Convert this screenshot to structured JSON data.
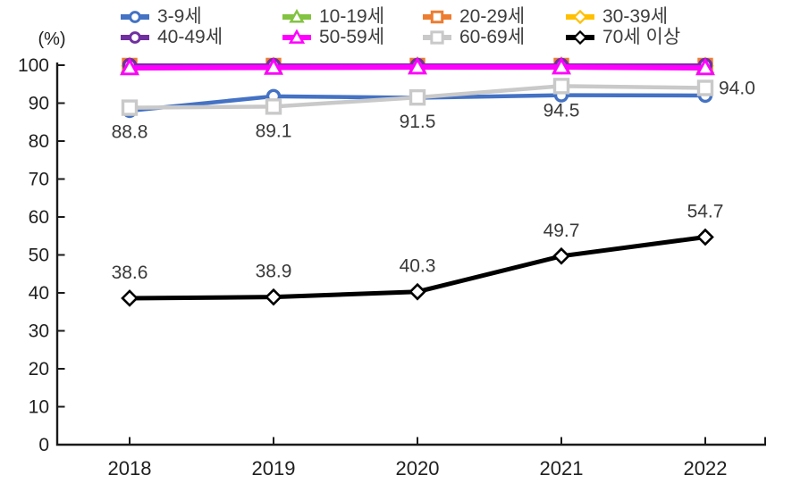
{
  "chart_data": {
    "type": "line",
    "title": "",
    "unit_label": "(%)",
    "x_categories": [
      "2018",
      "2019",
      "2020",
      "2021",
      "2022"
    ],
    "ylim": [
      0,
      100
    ],
    "yticks": [
      0,
      10,
      20,
      30,
      40,
      50,
      60,
      70,
      80,
      90,
      100
    ],
    "grid": false,
    "legend_position": "top",
    "axis_color": "#1a1a1a",
    "label_color": "#3a3a3a",
    "tick_label_color": "#1f1f1f",
    "series": [
      {
        "name": "3-9세",
        "color": "#4472C4",
        "marker": "circle",
        "line_width": 4.5,
        "marker_size": 7,
        "values": [
          88.0,
          91.8,
          91.4,
          92.1,
          92.0
        ],
        "estimated": true
      },
      {
        "name": "10-19세",
        "color": "#82C341",
        "marker": "triangle",
        "line_width": 4.5,
        "marker_size": 8,
        "values": [
          99.7,
          99.7,
          99.8,
          99.8,
          99.7
        ],
        "estimated": true
      },
      {
        "name": "20-29세",
        "color": "#ED7D31",
        "marker": "square",
        "line_width": 4.5,
        "marker_size": 7,
        "values": [
          99.9,
          99.9,
          99.9,
          99.9,
          99.9
        ],
        "estimated": true
      },
      {
        "name": "30-39세",
        "color": "#FFC000",
        "marker": "diamond",
        "line_width": 4.5,
        "marker_size": 8,
        "values": [
          99.8,
          99.8,
          99.8,
          99.8,
          99.8
        ],
        "estimated": true
      },
      {
        "name": "40-49세",
        "color": "#7030A0",
        "marker": "circle",
        "line_width": 4.0,
        "marker_size": 7,
        "values": [
          100.0,
          100.0,
          100.0,
          100.0,
          100.0
        ],
        "estimated": true
      },
      {
        "name": "50-59세",
        "color": "#FF00FF",
        "marker": "triangle",
        "line_width": 6.0,
        "marker_size": 8.5,
        "values": [
          99.3,
          99.4,
          99.5,
          99.5,
          99.3
        ],
        "estimated": true
      },
      {
        "name": "60-69세",
        "color": "#C9C9C9",
        "marker": "square",
        "line_width": 4.5,
        "marker_size": 7.5,
        "values": [
          88.8,
          89.1,
          91.5,
          94.5,
          94.0
        ],
        "labels": [
          "88.8",
          "89.1",
          "91.5",
          "94.5",
          "94.0"
        ],
        "label_placement": [
          "below",
          "below",
          "below",
          "below",
          "right"
        ]
      },
      {
        "name": "70세 이상",
        "color": "#000000",
        "marker": "diamond",
        "line_width": 5.0,
        "marker_size": 8,
        "values": [
          38.6,
          38.9,
          40.3,
          49.7,
          54.7
        ],
        "labels": [
          "38.6",
          "38.9",
          "40.3",
          "49.7",
          "54.7"
        ],
        "label_placement": [
          "above",
          "above",
          "above",
          "above",
          "above"
        ]
      }
    ]
  }
}
